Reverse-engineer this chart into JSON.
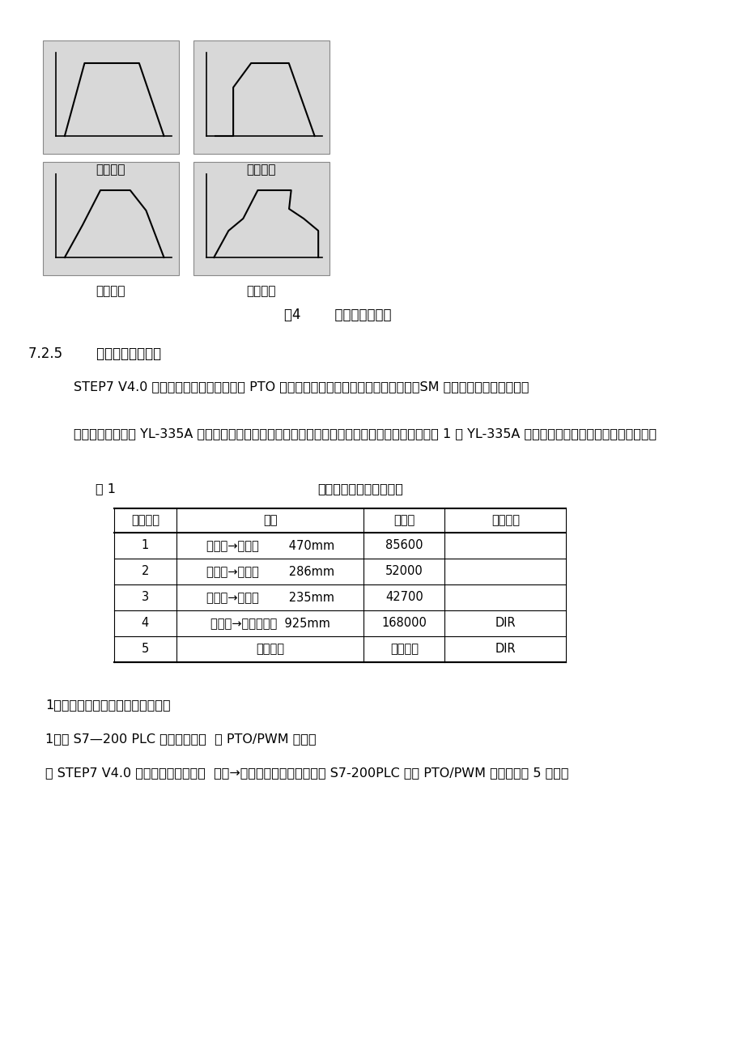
{
  "bg_color": "#ffffff",
  "fig_caption": "图4        包络的步数示意",
  "diagram_labels": [
    "一步包络",
    "两步包络",
    "三步包络",
    "四步包络"
  ],
  "section_title": "7.2.5        使用位控向导编程",
  "para1": "STEP7 V4.0 软件的位控向导能自动处理 PTO 脉冲的单段管线和多段管线、脉宽调制、SM 位置配置和创建包络表。",
  "para2": "本节将给出一个在 YL-335A 上实现的简单工作任务例子，阐述使用位控向导编程的方法和步骤。表 1 是 YL-335A 上实现步进电机运行所需的运动包络。",
  "table_title_left": "表 1",
  "table_title_right": "步进电机运行的运动包络",
  "table_headers": [
    "运动包络",
    "站点",
    "脉冲量",
    "移动方向"
  ],
  "table_rows": [
    [
      "1",
      "供料站→加工站        470mm",
      "85600",
      ""
    ],
    [
      "2",
      "加工站→装配站        286mm",
      "52000",
      ""
    ],
    [
      "3",
      "装配站→分解站        235mm",
      "42700",
      ""
    ],
    [
      "4",
      "分拣站→高速回零前  925mm",
      "168000",
      "DIR"
    ],
    [
      "5",
      "低速回零",
      "单速返回",
      "DIR"
    ]
  ],
  "bullet1": "1、使用位控向导编程的步骤如下：",
  "bullet2": "1）为 S7—200 PLC 选择选项组态  置 PTO/PWM 操作。",
  "para3": "在 STEP7 V4.0 软件命令菜单中选择  工具→位置控制向导并选择配置 S7-200PLC 内置 PTO/PWM 操作，如图 5 所示。"
}
